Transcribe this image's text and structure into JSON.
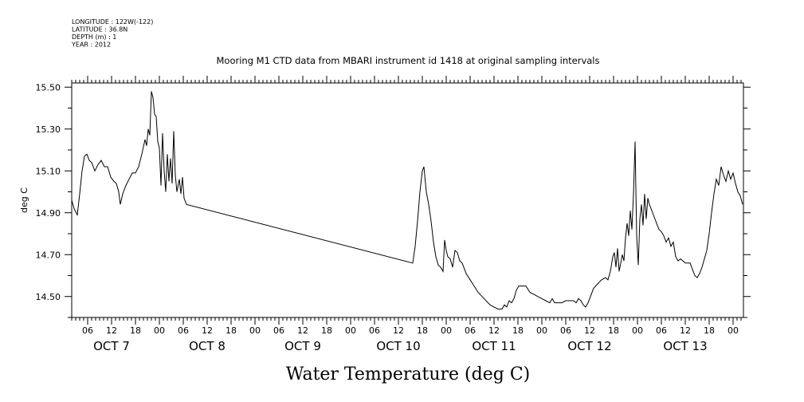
{
  "chart_data": {
    "type": "line",
    "header": [
      "LONGITUDE : 122W(-122)",
      "LATITUDE : 36.8N",
      "DEPTH (m) : 1",
      "YEAR : 2012"
    ],
    "title": "Mooring M1 CTD data from MBARI instrument id 1418 at original sampling intervals",
    "xlabel": "Water Temperature (deg C)",
    "ylabel": "deg C",
    "x_units": "hours since 2012-10-07 00:00",
    "xlim": [
      2.0,
      170.6
    ],
    "ylim": [
      14.4,
      15.52
    ],
    "yticks": [
      "14.50",
      "14.70",
      "14.90",
      "15.10",
      "15.30",
      "15.50"
    ],
    "hour_tick_labels": [
      "00",
      "06",
      "12",
      "18"
    ],
    "day_labels": [
      {
        "label": "OCT 7",
        "x": 0
      },
      {
        "label": "OCT 8",
        "x": 24
      },
      {
        "label": "OCT 9",
        "x": 48
      },
      {
        "label": "OCT 10",
        "x": 72
      },
      {
        "label": "OCT 11",
        "x": 96
      },
      {
        "label": "OCT 12",
        "x": 120
      },
      {
        "label": "OCT 13",
        "x": 144
      }
    ],
    "grid": false,
    "series": [
      {
        "values": [
          [
            2.0,
            14.96
          ],
          [
            2.6,
            14.92
          ],
          [
            3.4,
            14.89
          ],
          [
            4.0,
            14.99
          ],
          [
            4.6,
            15.1
          ],
          [
            5.2,
            15.17
          ],
          [
            5.8,
            15.18
          ],
          [
            6.4,
            15.15
          ],
          [
            7.0,
            15.14
          ],
          [
            7.8,
            15.1
          ],
          [
            8.6,
            15.13
          ],
          [
            9.4,
            15.15
          ],
          [
            10.2,
            15.12
          ],
          [
            11.0,
            15.12
          ],
          [
            11.8,
            15.07
          ],
          [
            12.6,
            15.05
          ],
          [
            13.2,
            15.04
          ],
          [
            13.8,
            15.0
          ],
          [
            14.2,
            14.94
          ],
          [
            14.8,
            14.99
          ],
          [
            15.6,
            15.03
          ],
          [
            16.4,
            15.06
          ],
          [
            17.2,
            15.09
          ],
          [
            18.0,
            15.09
          ],
          [
            18.8,
            15.12
          ],
          [
            19.6,
            15.18
          ],
          [
            20.4,
            15.25
          ],
          [
            20.8,
            15.22
          ],
          [
            21.2,
            15.3
          ],
          [
            21.6,
            15.27
          ],
          [
            22.0,
            15.48
          ],
          [
            22.4,
            15.45
          ],
          [
            22.8,
            15.37
          ],
          [
            23.2,
            15.36
          ],
          [
            23.6,
            15.24
          ],
          [
            24.0,
            15.21
          ],
          [
            24.4,
            15.03
          ],
          [
            24.8,
            15.28
          ],
          [
            25.2,
            15.1
          ],
          [
            25.6,
            15.0
          ],
          [
            26.0,
            15.18
          ],
          [
            26.4,
            15.05
          ],
          [
            26.8,
            15.16
          ],
          [
            27.2,
            15.04
          ],
          [
            27.6,
            15.29
          ],
          [
            28.0,
            15.08
          ],
          [
            28.4,
            15.0
          ],
          [
            29.0,
            15.06
          ],
          [
            29.4,
            14.99
          ],
          [
            29.8,
            15.07
          ],
          [
            30.2,
            14.97
          ],
          [
            30.8,
            14.94
          ],
          [
            87.6,
            14.66
          ],
          [
            88.2,
            14.74
          ],
          [
            88.8,
            14.86
          ],
          [
            89.4,
            15.0
          ],
          [
            90.0,
            15.1
          ],
          [
            90.4,
            15.12
          ],
          [
            91.0,
            15.0
          ],
          [
            91.6,
            14.94
          ],
          [
            92.2,
            14.86
          ],
          [
            92.8,
            14.76
          ],
          [
            93.4,
            14.69
          ],
          [
            94.0,
            14.65
          ],
          [
            94.6,
            14.64
          ],
          [
            95.2,
            14.62
          ],
          [
            95.6,
            14.77
          ],
          [
            96.0,
            14.72
          ],
          [
            96.4,
            14.69
          ],
          [
            97.0,
            14.68
          ],
          [
            97.6,
            14.64
          ],
          [
            98.2,
            14.72
          ],
          [
            98.8,
            14.71
          ],
          [
            99.4,
            14.67
          ],
          [
            100.0,
            14.66
          ],
          [
            101.0,
            14.61
          ],
          [
            102.0,
            14.58
          ],
          [
            103.0,
            14.55
          ],
          [
            104.0,
            14.52
          ],
          [
            105.0,
            14.5
          ],
          [
            106.0,
            14.48
          ],
          [
            107.0,
            14.46
          ],
          [
            108.0,
            14.45
          ],
          [
            109.0,
            14.44
          ],
          [
            110.0,
            14.44
          ],
          [
            110.6,
            14.46
          ],
          [
            111.2,
            14.45
          ],
          [
            111.8,
            14.48
          ],
          [
            112.4,
            14.47
          ],
          [
            113.0,
            14.49
          ],
          [
            113.6,
            14.53
          ],
          [
            114.2,
            14.55
          ],
          [
            115.0,
            14.55
          ],
          [
            116.0,
            14.55
          ],
          [
            117.0,
            14.52
          ],
          [
            118.0,
            14.51
          ],
          [
            119.0,
            14.5
          ],
          [
            120.0,
            14.49
          ],
          [
            121.0,
            14.48
          ],
          [
            122.0,
            14.47
          ],
          [
            122.6,
            14.49
          ],
          [
            123.2,
            14.47
          ],
          [
            124.0,
            14.47
          ],
          [
            125.0,
            14.47
          ],
          [
            126.0,
            14.48
          ],
          [
            127.0,
            14.48
          ],
          [
            128.0,
            14.48
          ],
          [
            128.6,
            14.47
          ],
          [
            129.2,
            14.49
          ],
          [
            129.8,
            14.48
          ],
          [
            130.4,
            14.46
          ],
          [
            131.0,
            14.45
          ],
          [
            131.6,
            14.47
          ],
          [
            132.2,
            14.5
          ],
          [
            133.0,
            14.54
          ],
          [
            134.0,
            14.56
          ],
          [
            135.0,
            14.58
          ],
          [
            136.0,
            14.59
          ],
          [
            136.6,
            14.58
          ],
          [
            137.2,
            14.62
          ],
          [
            137.8,
            14.69
          ],
          [
            138.2,
            14.71
          ],
          [
            138.6,
            14.64
          ],
          [
            139.0,
            14.73
          ],
          [
            139.4,
            14.62
          ],
          [
            139.8,
            14.66
          ],
          [
            140.2,
            14.7
          ],
          [
            140.6,
            14.67
          ],
          [
            141.0,
            14.78
          ],
          [
            141.4,
            14.85
          ],
          [
            141.8,
            14.79
          ],
          [
            142.2,
            14.91
          ],
          [
            142.6,
            14.82
          ],
          [
            143.0,
            14.99
          ],
          [
            143.4,
            15.24
          ],
          [
            143.8,
            14.79
          ],
          [
            144.2,
            14.65
          ],
          [
            144.6,
            14.87
          ],
          [
            145.0,
            14.94
          ],
          [
            145.4,
            14.84
          ],
          [
            145.8,
            14.99
          ],
          [
            146.2,
            14.87
          ],
          [
            146.6,
            14.97
          ],
          [
            147.0,
            14.94
          ],
          [
            147.6,
            14.91
          ],
          [
            148.2,
            14.88
          ],
          [
            148.8,
            14.85
          ],
          [
            149.4,
            14.82
          ],
          [
            150.0,
            14.81
          ],
          [
            150.6,
            14.79
          ],
          [
            151.2,
            14.76
          ],
          [
            151.8,
            14.78
          ],
          [
            152.4,
            14.74
          ],
          [
            153.0,
            14.76
          ],
          [
            153.6,
            14.69
          ],
          [
            154.2,
            14.67
          ],
          [
            154.8,
            14.68
          ],
          [
            155.4,
            14.67
          ],
          [
            156.0,
            14.66
          ],
          [
            156.6,
            14.66
          ],
          [
            157.2,
            14.66
          ],
          [
            157.8,
            14.63
          ],
          [
            158.4,
            14.6
          ],
          [
            159.0,
            14.59
          ],
          [
            159.6,
            14.61
          ],
          [
            160.2,
            14.64
          ],
          [
            160.8,
            14.68
          ],
          [
            161.4,
            14.72
          ],
          [
            162.0,
            14.8
          ],
          [
            162.6,
            14.9
          ],
          [
            163.2,
            14.99
          ],
          [
            163.8,
            15.06
          ],
          [
            164.4,
            15.03
          ],
          [
            165.0,
            15.12
          ],
          [
            165.6,
            15.08
          ],
          [
            166.2,
            15.05
          ],
          [
            166.8,
            15.1
          ],
          [
            167.4,
            15.06
          ],
          [
            168.0,
            15.09
          ],
          [
            168.6,
            15.04
          ],
          [
            169.2,
            15.0
          ],
          [
            169.8,
            14.98
          ],
          [
            170.4,
            14.94
          ]
        ]
      }
    ]
  }
}
